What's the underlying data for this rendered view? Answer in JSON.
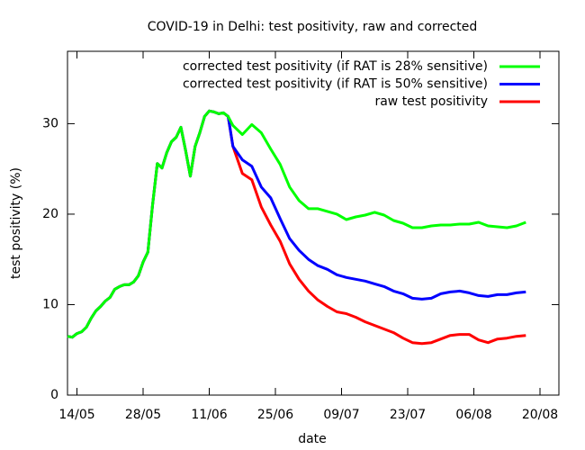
{
  "chart_data": {
    "type": "line",
    "title": "COVID-19 in Delhi: test positivity, raw and corrected",
    "x_label": "date",
    "y_label": "test positivity (%)",
    "x": [
      "12/05",
      "13/05",
      "14/05",
      "15/05",
      "16/05",
      "17/05",
      "18/05",
      "19/05",
      "20/05",
      "21/05",
      "22/05",
      "23/05",
      "24/05",
      "25/05",
      "26/05",
      "27/05",
      "28/05",
      "29/05",
      "30/05",
      "31/05",
      "01/06",
      "02/06",
      "03/06",
      "04/06",
      "05/06",
      "06/06",
      "07/06",
      "08/06",
      "09/06",
      "10/06",
      "11/06",
      "12/06",
      "13/06",
      "14/06",
      "15/06",
      "16/06",
      "18/06",
      "20/06",
      "22/06",
      "24/06",
      "26/06",
      "28/06",
      "30/06",
      "02/07",
      "04/07",
      "06/07",
      "08/07",
      "10/07",
      "12/07",
      "14/07",
      "16/07",
      "18/07",
      "20/07",
      "22/07",
      "24/07",
      "26/07",
      "28/07",
      "30/07",
      "01/08",
      "03/08",
      "05/08",
      "07/08",
      "09/08",
      "11/08",
      "13/08",
      "15/08",
      "17/08"
    ],
    "series": [
      {
        "name": "corrected test positivity (if RAT is 28% sensitive)",
        "color": "#00ff00",
        "values": [
          6.5,
          6.4,
          6.8,
          7.0,
          7.5,
          8.5,
          9.3,
          9.8,
          10.4,
          10.8,
          11.7,
          12.0,
          12.2,
          12.2,
          12.5,
          13.2,
          14.7,
          15.8,
          21,
          25.6,
          25.1,
          26.8,
          28.0,
          28.5,
          29.6,
          27,
          24.2,
          27.5,
          29,
          30.8,
          31.4,
          31.3,
          31.1,
          31.2,
          30.8,
          29.8,
          28.8,
          29.9,
          29.0,
          27.2,
          25.5,
          23.0,
          21.5,
          20.6,
          20.6,
          20.3,
          20.0,
          19.4,
          19.7,
          19.9,
          20.2,
          19.9,
          19.3,
          19.0,
          18.5,
          18.5,
          18.7,
          18.8,
          18.8,
          18.9,
          18.9,
          19.1,
          18.7,
          18.6,
          18.5,
          18.7,
          19.1
        ]
      },
      {
        "name": "corrected test positivity (if RAT is 50% sensitive)",
        "color": "#0000ff",
        "values": [
          6.5,
          6.4,
          6.8,
          7.0,
          7.5,
          8.5,
          9.3,
          9.8,
          10.4,
          10.8,
          11.7,
          12.0,
          12.2,
          12.2,
          12.5,
          13.2,
          14.7,
          15.8,
          21,
          25.6,
          25.1,
          26.8,
          28.0,
          28.5,
          29.6,
          27,
          24.2,
          27.5,
          29,
          30.8,
          31.4,
          31.3,
          31.1,
          31.2,
          30.8,
          27.5,
          26.0,
          25.3,
          23,
          21.8,
          19.5,
          17.3,
          16,
          15,
          14.3,
          13.9,
          13.3,
          13.0,
          12.8,
          12.6,
          12.3,
          12.0,
          11.5,
          11.2,
          10.7,
          10.6,
          10.7,
          11.2,
          11.4,
          11.5,
          11.3,
          11.0,
          10.9,
          11.1,
          11.1,
          11.3,
          11.4
        ]
      },
      {
        "name": "raw test positivity",
        "color": "#ff0000",
        "values": [
          6.5,
          6.4,
          6.8,
          7.0,
          7.5,
          8.5,
          9.3,
          9.8,
          10.4,
          10.8,
          11.7,
          12.0,
          12.2,
          12.2,
          12.5,
          13.2,
          14.7,
          15.8,
          21,
          25.6,
          25.1,
          26.8,
          28.0,
          28.5,
          29.6,
          27,
          24.2,
          27.5,
          29,
          30.8,
          31.4,
          31.3,
          31.1,
          31.2,
          30.8,
          27.5,
          24.5,
          23.8,
          20.8,
          18.8,
          17,
          14.5,
          12.8,
          11.5,
          10.5,
          9.8,
          9.2,
          9.0,
          8.6,
          8.1,
          7.7,
          7.3,
          6.9,
          6.3,
          5.8,
          5.7,
          5.8,
          6.2,
          6.6,
          6.7,
          6.7,
          6.1,
          5.8,
          6.2,
          6.3,
          6.5,
          6.6
        ]
      }
    ],
    "xlim": [
      "12/05",
      "24/08"
    ],
    "xticks": [
      "14/05",
      "28/05",
      "11/06",
      "25/06",
      "09/07",
      "23/07",
      "06/08",
      "20/08"
    ],
    "ylim": [
      0,
      38
    ],
    "yticks": [
      0,
      10,
      20,
      30
    ],
    "legend": "top right"
  }
}
